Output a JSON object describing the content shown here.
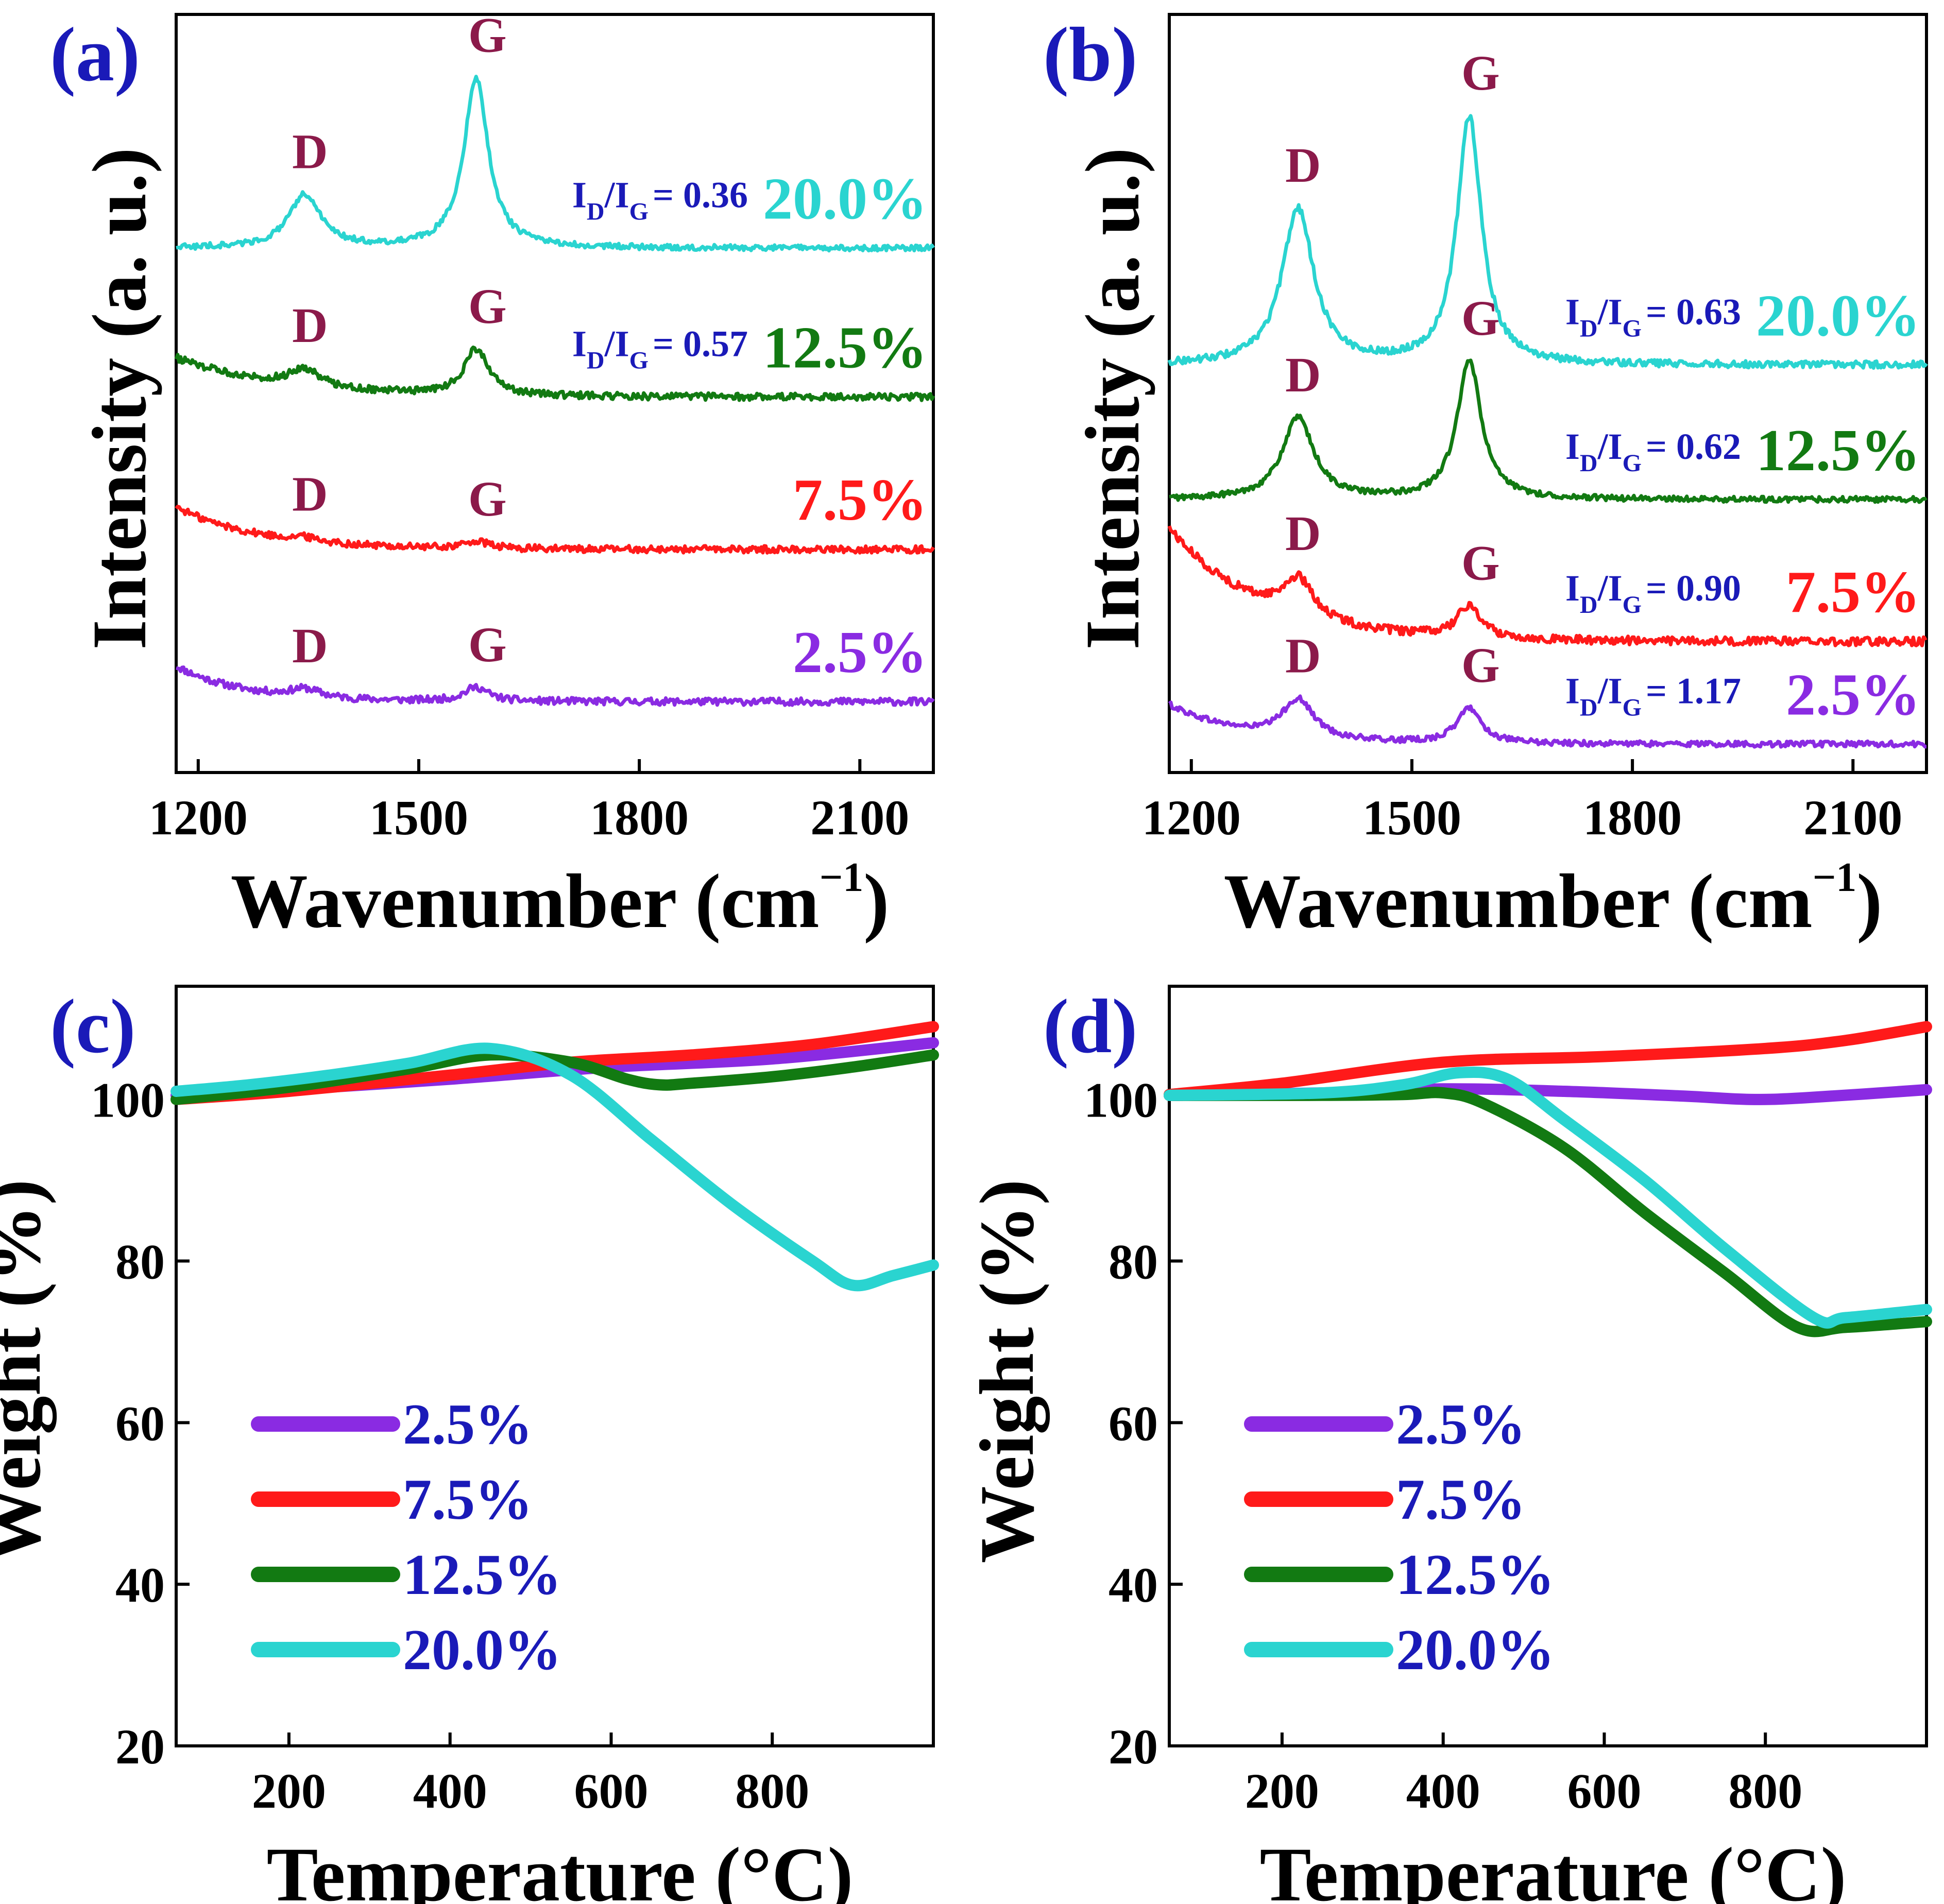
{
  "figure": {
    "colors": {
      "purple": "#8A2BE2",
      "red": "#FF1A1A",
      "green": "#127A12",
      "cyan": "#2AD4D0",
      "peak_label": "#8B1A4A",
      "panel_label": "#1A1AB8",
      "ratio_label": "#1A1AB8",
      "legend_text": "#1A1AB8",
      "axis": "#000000"
    },
    "series_keys": [
      "purple",
      "red",
      "green",
      "cyan"
    ]
  },
  "chart_data": [
    {
      "panel": "(a)",
      "type": "line",
      "title": "",
      "xlabel": "Wavenumber (cm",
      "xlabel_sup": "−1",
      "xlabel_close": ")",
      "ylabel": "Intensity (a. u.)",
      "xlim": [
        1170,
        2200
      ],
      "ylim": [
        -0.1,
        10.6
      ],
      "xticks": [
        1200,
        1500,
        1800,
        2100
      ],
      "yticks": [],
      "grid": false,
      "series": [
        {
          "name": "2.5%",
          "color_key": "purple",
          "offset": 0.9,
          "slope": 0.5,
          "decay": 90,
          "amp_d": 0.12,
          "amp_g": 0.2,
          "noise": 0.05,
          "peak_label_d": "D",
          "peak_label_g": "G",
          "ratio_label": "",
          "x": [
            1170,
            1360,
            1590,
            2200
          ]
        },
        {
          "name": "7.5%",
          "color_key": "red",
          "offset": 3.05,
          "slope": 0.6,
          "decay": 110,
          "amp_d": 0.06,
          "amp_g": 0.1,
          "noise": 0.05,
          "peak_label_d": "D",
          "peak_label_g": "G",
          "ratio_label": "",
          "x": [
            1170,
            1345,
            1580,
            2200
          ]
        },
        {
          "name": "12.5%",
          "color_key": "green",
          "offset": 5.2,
          "slope": 0.55,
          "decay": 140,
          "amp_d": 0.25,
          "amp_g": 0.65,
          "noise": 0.05,
          "peak_label_d": "D",
          "peak_label_g": "G",
          "ratio_label": "I",
          "ratio_sub1": "D",
          "ratio_sep": "/I",
          "ratio_sub2": "G",
          "ratio_value": "= 0.57",
          "x": [
            1170,
            1345,
            1575,
            2200
          ]
        },
        {
          "name": "20.0%",
          "color_key": "cyan",
          "offset": 7.3,
          "slope": 0.0,
          "decay": 100,
          "amp_d": 0.75,
          "amp_g": 2.4,
          "noise": 0.04,
          "peak_label_d": "D",
          "peak_label_g": "G",
          "ratio_label": "I",
          "ratio_sub1": "D",
          "ratio_sep": "/I",
          "ratio_sub2": "G",
          "ratio_value": "= 0.36",
          "x": [
            1170,
            1345,
            1575,
            2200
          ]
        }
      ],
      "peak_positions": {
        "d": 1345,
        "g": 1578
      }
    },
    {
      "panel": "(b)",
      "type": "line",
      "title": "",
      "xlabel": "Wavenumber (cm",
      "xlabel_sup": "−1",
      "xlabel_close": ")",
      "ylabel": "Intensity (a. u.)",
      "xlim": [
        1170,
        2200
      ],
      "ylim": [
        -0.1,
        10.6
      ],
      "xticks": [
        1200,
        1500,
        1800,
        2100
      ],
      "yticks": [],
      "grid": false,
      "series": [
        {
          "name": "2.5%",
          "color_key": "purple",
          "offset": 0.3,
          "slope": 0.55,
          "decay": 100,
          "amp_d": 0.55,
          "amp_g": 0.5,
          "noise": 0.04,
          "peak_label_d": "D",
          "peak_label_g": "G",
          "ratio_label": "I",
          "ratio_sub1": "D",
          "ratio_sep": "/I",
          "ratio_sub2": "G",
          "ratio_value": "= 1.17",
          "x": [
            1170,
            1350,
            1580,
            2200
          ]
        },
        {
          "name": "7.5%",
          "color_key": "red",
          "offset": 1.75,
          "slope": 1.6,
          "decay": 120,
          "amp_d": 0.55,
          "amp_g": 0.45,
          "noise": 0.06,
          "peak_label_d": "D",
          "peak_label_g": "G",
          "ratio_label": "I",
          "ratio_sub1": "D",
          "ratio_sep": "/I",
          "ratio_sub2": "G",
          "ratio_value": "= 0.90",
          "x": [
            1170,
            1350,
            1580,
            2200
          ]
        },
        {
          "name": "12.5%",
          "color_key": "green",
          "offset": 3.75,
          "slope": 0.0,
          "decay": 100,
          "amp_d": 1.15,
          "amp_g": 1.95,
          "noise": 0.04,
          "peak_label_d": "D",
          "peak_label_g": "G",
          "ratio_label": "I",
          "ratio_sub1": "D",
          "ratio_sep": "/I",
          "ratio_sub2": "G",
          "ratio_value": "= 0.62",
          "x": [
            1170,
            1345,
            1575,
            2200
          ]
        },
        {
          "name": "20.0%",
          "color_key": "cyan",
          "offset": 5.65,
          "slope": 0.0,
          "decay": 100,
          "amp_d": 2.2,
          "amp_g": 3.5,
          "noise": 0.05,
          "peak_label_d": "D",
          "peak_label_g": "G",
          "ratio_label": "I",
          "ratio_sub1": "D",
          "ratio_sep": "/I",
          "ratio_sub2": "G",
          "ratio_value": "= 0.63",
          "x": [
            1170,
            1345,
            1575,
            2200
          ]
        }
      ],
      "peak_positions": {
        "d": 1345,
        "g": 1578
      }
    },
    {
      "panel": "(c)",
      "type": "line",
      "title": "",
      "xlabel": "Temperature (°C)",
      "ylabel": "Weight (%)",
      "xlim": [
        60,
        1000
      ],
      "ylim": [
        20,
        114
      ],
      "xticks": [
        200,
        400,
        600,
        800
      ],
      "yticks": [
        20,
        40,
        60,
        80,
        100
      ],
      "grid": false,
      "legend": {
        "placement": "lower-left",
        "entries": [
          "2.5%",
          "7.5%",
          "12.5%",
          "20.0%"
        ]
      },
      "series": [
        {
          "name": "2.5%",
          "color_key": "purple",
          "x": [
            60,
            200,
            400,
            600,
            800,
            1000
          ],
          "y": [
            100.5,
            101.2,
            102.5,
            104.0,
            105.0,
            107.0
          ]
        },
        {
          "name": "7.5%",
          "color_key": "red",
          "x": [
            60,
            200,
            400,
            550,
            700,
            850,
            1000
          ],
          "y": [
            100.0,
            101.0,
            103.0,
            104.6,
            105.5,
            106.8,
            109.0
          ]
        },
        {
          "name": "12.5%",
          "color_key": "green",
          "x": [
            60,
            200,
            350,
            450,
            550,
            620,
            660,
            700,
            800,
            900,
            1000
          ],
          "y": [
            100.0,
            101.5,
            103.8,
            105.5,
            104.6,
            102.5,
            101.8,
            102.0,
            102.8,
            104.0,
            105.5
          ]
        },
        {
          "name": "20.0%",
          "color_key": "cyan",
          "x": [
            60,
            150,
            250,
            350,
            450,
            550,
            650,
            750,
            850,
            900,
            950,
            1000
          ],
          "y": [
            101.0,
            101.8,
            103.0,
            104.5,
            106.3,
            103.0,
            95.0,
            87.0,
            80.0,
            77.0,
            78.2,
            79.5
          ]
        }
      ]
    },
    {
      "panel": "(d)",
      "type": "line",
      "title": "",
      "xlabel": "Temperature (°C)",
      "ylabel": "Weight (%)",
      "xlim": [
        60,
        1000
      ],
      "ylim": [
        20,
        114
      ],
      "xticks": [
        200,
        400,
        600,
        800
      ],
      "yticks": [
        20,
        40,
        60,
        80,
        100
      ],
      "grid": false,
      "legend": {
        "placement": "lower-left",
        "entries": [
          "2.5%",
          "7.5%",
          "12.5%",
          "20.0%"
        ]
      },
      "series": [
        {
          "name": "2.5%",
          "color_key": "purple",
          "x": [
            60,
            250,
            400,
            550,
            700,
            780,
            850,
            1000
          ],
          "y": [
            100.5,
            100.8,
            101.3,
            101.0,
            100.4,
            100.0,
            100.2,
            101.2
          ]
        },
        {
          "name": "7.5%",
          "color_key": "red",
          "x": [
            60,
            200,
            400,
            600,
            800,
            900,
            1000
          ],
          "y": [
            100.6,
            102.0,
            104.6,
            105.3,
            106.3,
            107.3,
            109.0
          ]
        },
        {
          "name": "12.5%",
          "color_key": "green",
          "x": [
            60,
            250,
            350,
            400,
            450,
            550,
            650,
            750,
            840,
            900,
            1000
          ],
          "y": [
            100.5,
            100.5,
            100.6,
            100.8,
            99.5,
            94.0,
            86.0,
            78.5,
            71.8,
            71.8,
            72.5
          ]
        },
        {
          "name": "20.0%",
          "color_key": "cyan",
          "x": [
            60,
            250,
            350,
            420,
            480,
            550,
            650,
            750,
            860,
            900,
            1000
          ],
          "y": [
            100.5,
            100.8,
            101.8,
            103.3,
            102.5,
            97.5,
            90.0,
            81.5,
            73.0,
            73.0,
            74.0
          ]
        }
      ]
    }
  ]
}
